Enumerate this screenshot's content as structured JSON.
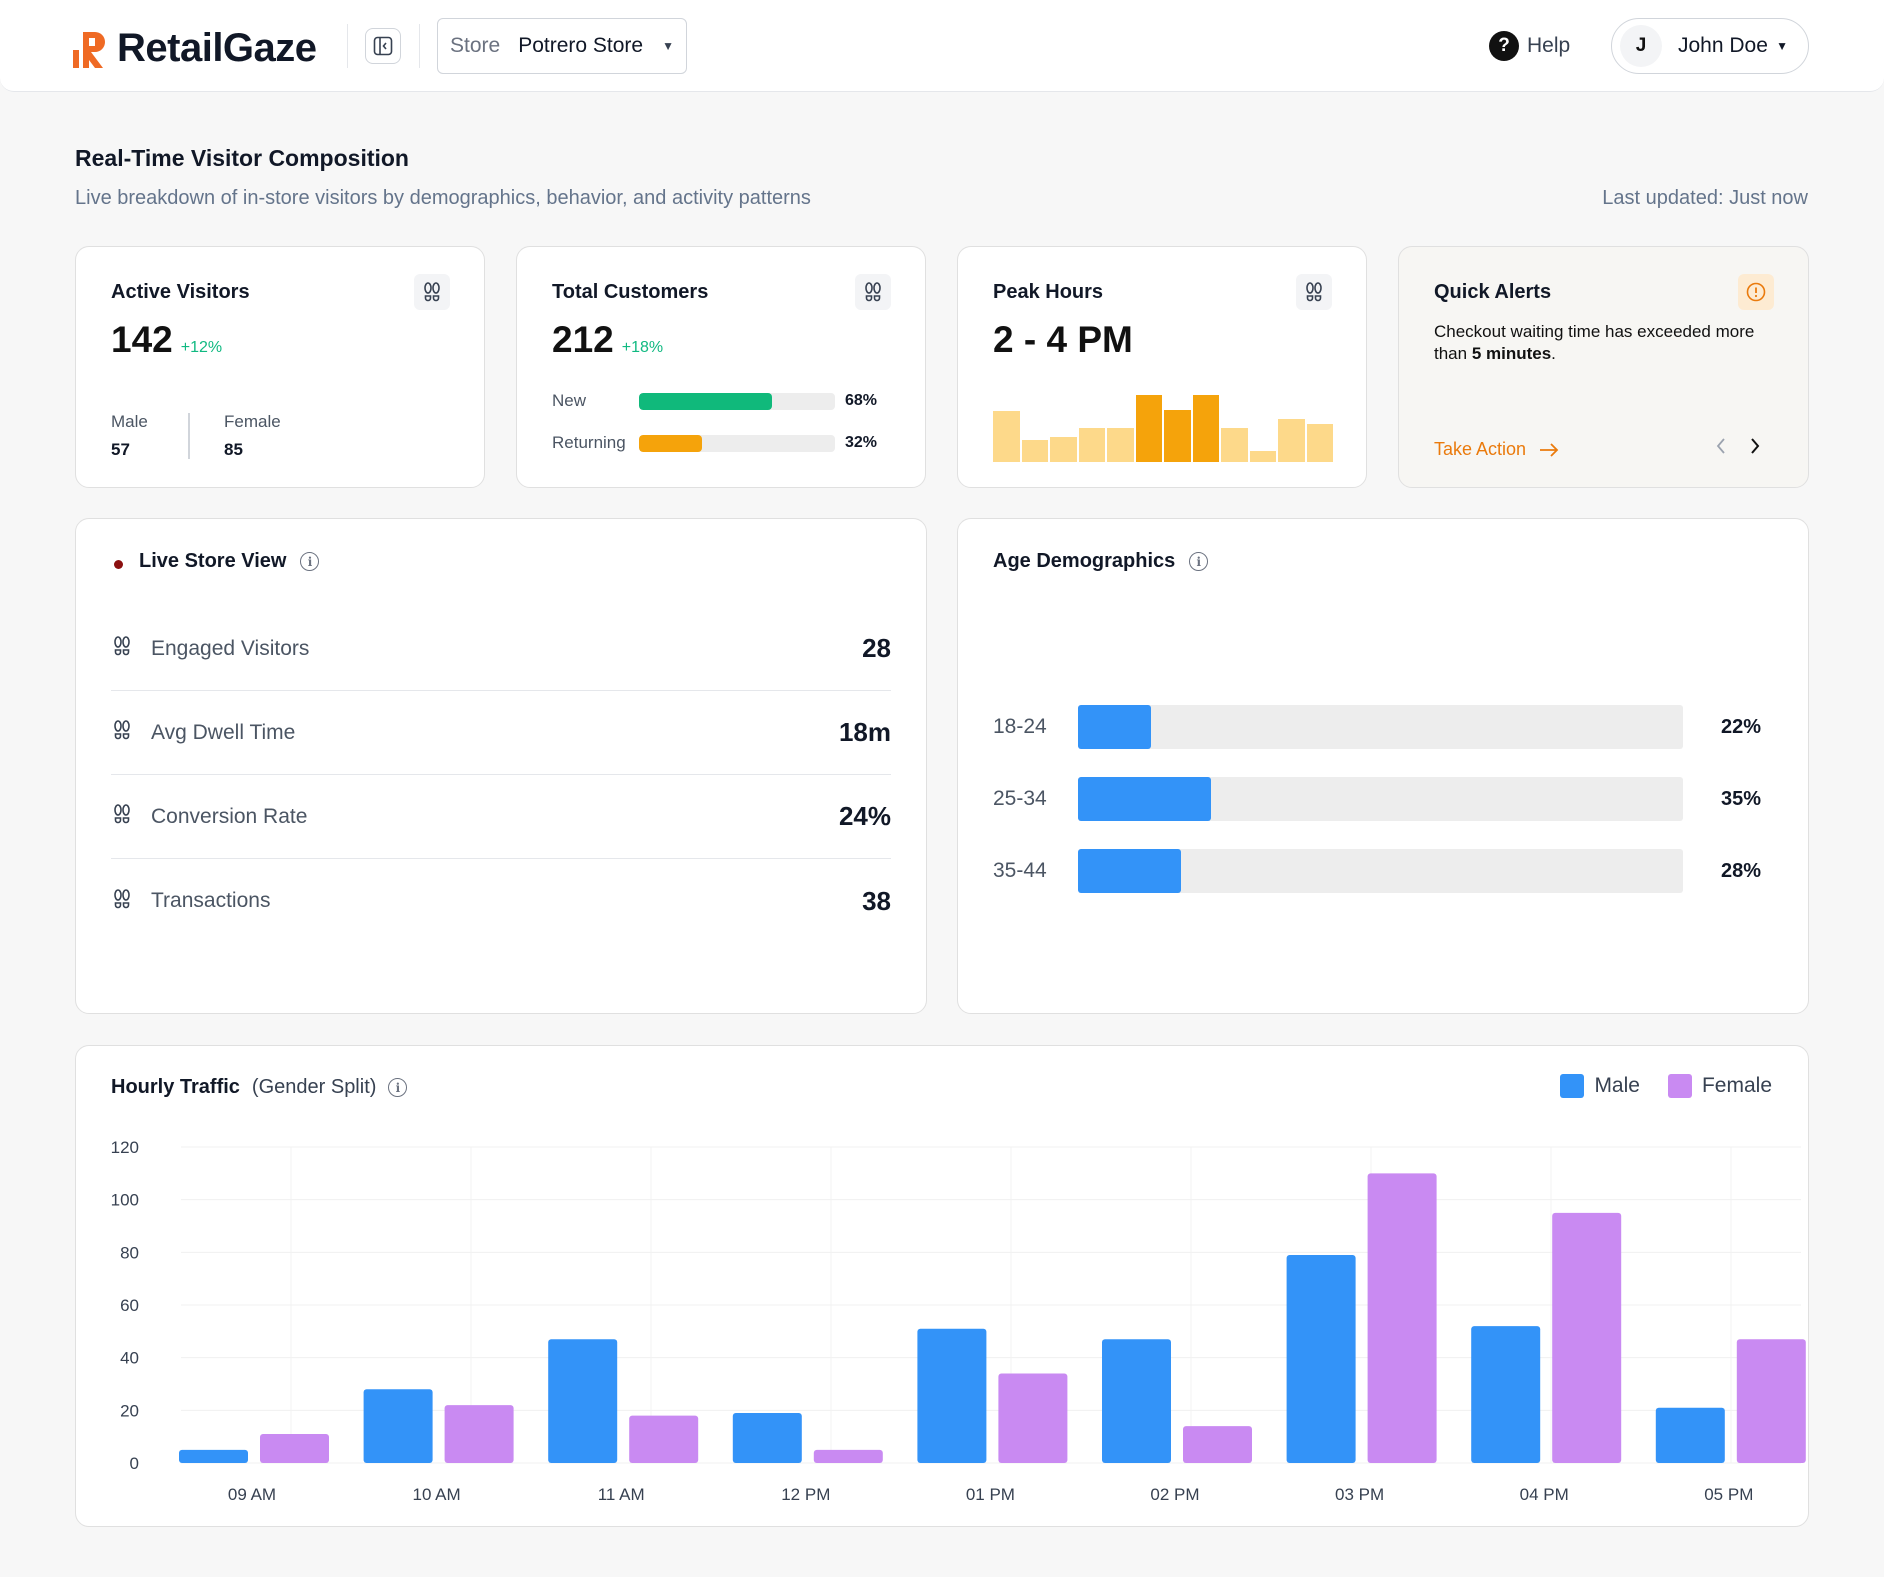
{
  "header": {
    "brand": "RetailGaze",
    "store_label": "Store",
    "store_value": "Potrero Store",
    "help_label": "Help",
    "user_initial": "J",
    "user_name": "John Doe"
  },
  "page": {
    "title": "Real-Time Visitor Composition",
    "subtitle": "Live breakdown of in-store visitors by demographics, behavior, and activity patterns",
    "last_updated": "Last updated: Just now"
  },
  "active_visitors": {
    "title": "Active Visitors",
    "value": "142",
    "delta": "+12%",
    "male_label": "Male",
    "male_value": "57",
    "female_label": "Female",
    "female_value": "85"
  },
  "total_customers": {
    "title": "Total Customers",
    "value": "212",
    "delta": "+18%",
    "rows": [
      {
        "label": "New",
        "pct_text": "68%",
        "pct": 68,
        "color": "#10b97b"
      },
      {
        "label": "Returning",
        "pct_text": "32%",
        "pct": 32,
        "color": "#f5a30b"
      }
    ]
  },
  "peak_hours": {
    "title": "Peak Hours",
    "value": "2 - 4 PM",
    "bars": [
      {
        "v": 0.62,
        "c": "#fdd98a"
      },
      {
        "v": 0.27,
        "c": "#fdd98a"
      },
      {
        "v": 0.31,
        "c": "#fdd98a"
      },
      {
        "v": 0.41,
        "c": "#fdd98a"
      },
      {
        "v": 0.41,
        "c": "#fdd98a"
      },
      {
        "v": 0.82,
        "c": "#f5a30b"
      },
      {
        "v": 0.63,
        "c": "#f5a30b"
      },
      {
        "v": 0.82,
        "c": "#f5a30b"
      },
      {
        "v": 0.41,
        "c": "#fdd98a"
      },
      {
        "v": 0.14,
        "c": "#fdd98a"
      },
      {
        "v": 0.52,
        "c": "#fdd98a"
      },
      {
        "v": 0.46,
        "c": "#fdd98a"
      }
    ]
  },
  "quick_alerts": {
    "title": "Quick Alerts",
    "text_before": "Checkout waiting time has exceeded more than ",
    "text_bold": "5 minutes",
    "text_after": ".",
    "action_label": "Take Action"
  },
  "live_store": {
    "title": "Live Store View",
    "metrics": [
      {
        "label": "Engaged Visitors",
        "value": "28"
      },
      {
        "label": "Avg Dwell Time",
        "value": "18m"
      },
      {
        "label": "Conversion Rate",
        "value": "24%"
      },
      {
        "label": "Transactions",
        "value": "38"
      }
    ]
  },
  "age_demographics": {
    "title": "Age Demographics",
    "rows": [
      {
        "label": "18-24",
        "pct_text": "22%",
        "fill": 0.12
      },
      {
        "label": "25-34",
        "pct_text": "35%",
        "fill": 0.22
      },
      {
        "label": "35-44",
        "pct_text": "28%",
        "fill": 0.17
      }
    ]
  },
  "hourly_traffic": {
    "title": "Hourly Traffic",
    "subtitle": "(Gender Split)",
    "legend": [
      {
        "name": "Male",
        "color": "#3393f8"
      },
      {
        "name": "Female",
        "color": "#c98af2"
      }
    ]
  },
  "chart_data": {
    "type": "bar",
    "title": "Hourly Traffic",
    "subtitle": "(Gender Split)",
    "categories": [
      "09 AM",
      "10 AM",
      "11 AM",
      "12 PM",
      "01 PM",
      "02 PM",
      "03 PM",
      "04 PM",
      "05 PM"
    ],
    "series": [
      {
        "name": "Male",
        "color": "#3393f8",
        "values": [
          5,
          28,
          47,
          19,
          51,
          47,
          79,
          52,
          21
        ]
      },
      {
        "name": "Female",
        "color": "#c98af2",
        "values": [
          11,
          22,
          18,
          5,
          34,
          14,
          110,
          95,
          47
        ]
      }
    ],
    "ylim": [
      0,
      120
    ],
    "yticks": [
      0,
      20,
      40,
      60,
      80,
      100,
      120
    ],
    "grid": true,
    "legend_position": "top-right"
  }
}
